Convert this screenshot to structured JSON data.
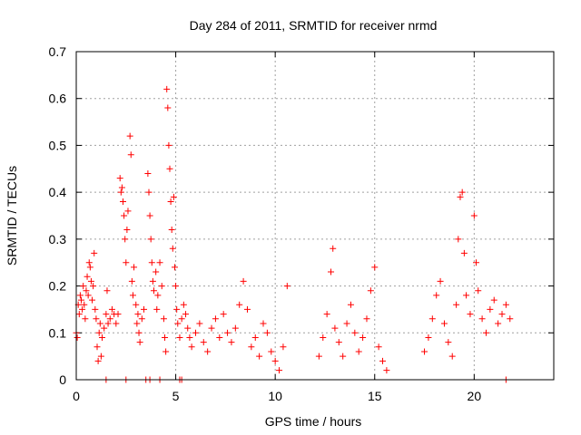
{
  "chart_data": {
    "type": "scatter",
    "title": "Day 284 of 2011, SRMTID for receiver nrmd",
    "xlabel": "GPS time / hours",
    "ylabel": "SRMTID / TECUs",
    "xlim": [
      0,
      24
    ],
    "ylim": [
      0,
      0.7
    ],
    "x_ticks": [
      0,
      5,
      10,
      15,
      20
    ],
    "y_ticks": [
      0,
      0.1,
      0.2,
      0.3,
      0.4,
      0.5,
      0.6,
      0.7
    ],
    "x_tick_labels": [
      "0",
      "5",
      "10",
      "15",
      "20"
    ],
    "y_tick_labels": [
      "0",
      "0.1",
      "0.2",
      "0.3",
      "0.4",
      "0.5",
      "0.6",
      "0.7"
    ],
    "grid": true,
    "marker": "+",
    "series": [
      {
        "name": "nrmd",
        "color": "#ff0000",
        "points": [
          [
            0.0,
            0.1
          ],
          [
            0.05,
            0.09
          ],
          [
            0.1,
            0.16
          ],
          [
            0.15,
            0.14
          ],
          [
            0.2,
            0.18
          ],
          [
            0.25,
            0.17
          ],
          [
            0.3,
            0.15
          ],
          [
            0.35,
            0.2
          ],
          [
            0.4,
            0.16
          ],
          [
            0.45,
            0.13
          ],
          [
            0.5,
            0.19
          ],
          [
            0.55,
            0.22
          ],
          [
            0.6,
            0.18
          ],
          [
            0.65,
            0.25
          ],
          [
            0.7,
            0.24
          ],
          [
            0.75,
            0.21
          ],
          [
            0.8,
            0.17
          ],
          [
            0.85,
            0.2
          ],
          [
            0.9,
            0.27
          ],
          [
            0.95,
            0.15
          ],
          [
            1.0,
            0.13
          ],
          [
            1.05,
            0.07
          ],
          [
            1.1,
            0.04
          ],
          [
            1.15,
            0.1
          ],
          [
            1.2,
            0.12
          ],
          [
            1.25,
            0.05
          ],
          [
            1.3,
            0.09
          ],
          [
            1.4,
            0.11
          ],
          [
            1.5,
            0.14
          ],
          [
            1.55,
            0.19
          ],
          [
            1.6,
            0.12
          ],
          [
            1.7,
            0.13
          ],
          [
            1.8,
            0.15
          ],
          [
            1.9,
            0.14
          ],
          [
            2.0,
            0.12
          ],
          [
            2.1,
            0.14
          ],
          [
            2.2,
            0.43
          ],
          [
            2.25,
            0.4
          ],
          [
            2.3,
            0.41
          ],
          [
            2.35,
            0.38
          ],
          [
            2.4,
            0.35
          ],
          [
            2.45,
            0.3
          ],
          [
            2.5,
            0.25
          ],
          [
            2.55,
            0.32
          ],
          [
            2.6,
            0.36
          ],
          [
            2.7,
            0.52
          ],
          [
            2.75,
            0.48
          ],
          [
            2.8,
            0.21
          ],
          [
            2.85,
            0.18
          ],
          [
            2.9,
            0.24
          ],
          [
            3.0,
            0.16
          ],
          [
            3.05,
            0.12
          ],
          [
            3.1,
            0.14
          ],
          [
            3.15,
            0.1
          ],
          [
            3.2,
            0.08
          ],
          [
            3.3,
            0.13
          ],
          [
            3.4,
            0.15
          ],
          [
            3.6,
            0.44
          ],
          [
            3.65,
            0.4
          ],
          [
            3.7,
            0.35
          ],
          [
            3.75,
            0.3
          ],
          [
            3.8,
            0.25
          ],
          [
            3.85,
            0.21
          ],
          [
            3.9,
            0.19
          ],
          [
            4.0,
            0.23
          ],
          [
            4.05,
            0.15
          ],
          [
            4.1,
            0.18
          ],
          [
            4.2,
            0.25
          ],
          [
            4.3,
            0.2
          ],
          [
            4.4,
            0.13
          ],
          [
            4.45,
            0.09
          ],
          [
            4.5,
            0.06
          ],
          [
            4.55,
            0.62
          ],
          [
            4.6,
            0.58
          ],
          [
            4.65,
            0.5
          ],
          [
            4.7,
            0.45
          ],
          [
            4.75,
            0.38
          ],
          [
            4.8,
            0.32
          ],
          [
            4.85,
            0.28
          ],
          [
            4.9,
            0.39
          ],
          [
            4.95,
            0.24
          ],
          [
            5.0,
            0.2
          ],
          [
            5.05,
            0.15
          ],
          [
            5.1,
            0.12
          ],
          [
            5.2,
            0.09
          ],
          [
            5.3,
            0.13
          ],
          [
            5.4,
            0.16
          ],
          [
            5.5,
            0.14
          ],
          [
            5.6,
            0.11
          ],
          [
            5.7,
            0.09
          ],
          [
            5.8,
            0.07
          ],
          [
            6.0,
            0.1
          ],
          [
            6.2,
            0.12
          ],
          [
            6.4,
            0.08
          ],
          [
            6.6,
            0.06
          ],
          [
            6.8,
            0.11
          ],
          [
            7.0,
            0.13
          ],
          [
            7.2,
            0.09
          ],
          [
            7.4,
            0.14
          ],
          [
            7.6,
            0.1
          ],
          [
            7.8,
            0.08
          ],
          [
            8.0,
            0.11
          ],
          [
            8.2,
            0.16
          ],
          [
            8.4,
            0.21
          ],
          [
            8.6,
            0.15
          ],
          [
            8.8,
            0.07
          ],
          [
            9.0,
            0.09
          ],
          [
            9.2,
            0.05
          ],
          [
            9.4,
            0.12
          ],
          [
            9.6,
            0.1
          ],
          [
            9.8,
            0.06
          ],
          [
            10.0,
            0.04
          ],
          [
            10.2,
            0.02
          ],
          [
            10.4,
            0.07
          ],
          [
            10.6,
            0.2
          ],
          [
            12.2,
            0.05
          ],
          [
            12.4,
            0.09
          ],
          [
            12.6,
            0.14
          ],
          [
            12.8,
            0.23
          ],
          [
            12.9,
            0.28
          ],
          [
            13.0,
            0.11
          ],
          [
            13.2,
            0.08
          ],
          [
            13.4,
            0.05
          ],
          [
            13.6,
            0.12
          ],
          [
            13.8,
            0.16
          ],
          [
            14.0,
            0.1
          ],
          [
            14.2,
            0.06
          ],
          [
            14.4,
            0.09
          ],
          [
            14.6,
            0.13
          ],
          [
            14.8,
            0.19
          ],
          [
            15.0,
            0.24
          ],
          [
            15.2,
            0.07
          ],
          [
            15.4,
            0.04
          ],
          [
            15.6,
            0.02
          ],
          [
            17.5,
            0.06
          ],
          [
            17.7,
            0.09
          ],
          [
            17.9,
            0.13
          ],
          [
            18.1,
            0.18
          ],
          [
            18.3,
            0.21
          ],
          [
            18.5,
            0.12
          ],
          [
            18.7,
            0.08
          ],
          [
            18.9,
            0.05
          ],
          [
            19.1,
            0.16
          ],
          [
            19.2,
            0.3
          ],
          [
            19.3,
            0.39
          ],
          [
            19.4,
            0.4
          ],
          [
            19.5,
            0.27
          ],
          [
            19.6,
            0.18
          ],
          [
            19.8,
            0.14
          ],
          [
            20.0,
            0.35
          ],
          [
            20.1,
            0.25
          ],
          [
            20.2,
            0.19
          ],
          [
            20.4,
            0.13
          ],
          [
            20.6,
            0.1
          ],
          [
            20.8,
            0.15
          ],
          [
            21.0,
            0.17
          ],
          [
            21.2,
            0.12
          ],
          [
            21.4,
            0.14
          ],
          [
            21.6,
            0.16
          ],
          [
            21.8,
            0.13
          ],
          [
            1.5,
            0.0
          ],
          [
            2.5,
            0.0
          ],
          [
            3.5,
            0.0
          ],
          [
            3.7,
            0.0
          ],
          [
            4.2,
            0.0
          ],
          [
            5.2,
            0.0
          ],
          [
            5.3,
            0.0
          ],
          [
            21.6,
            0.0
          ]
        ]
      }
    ]
  }
}
